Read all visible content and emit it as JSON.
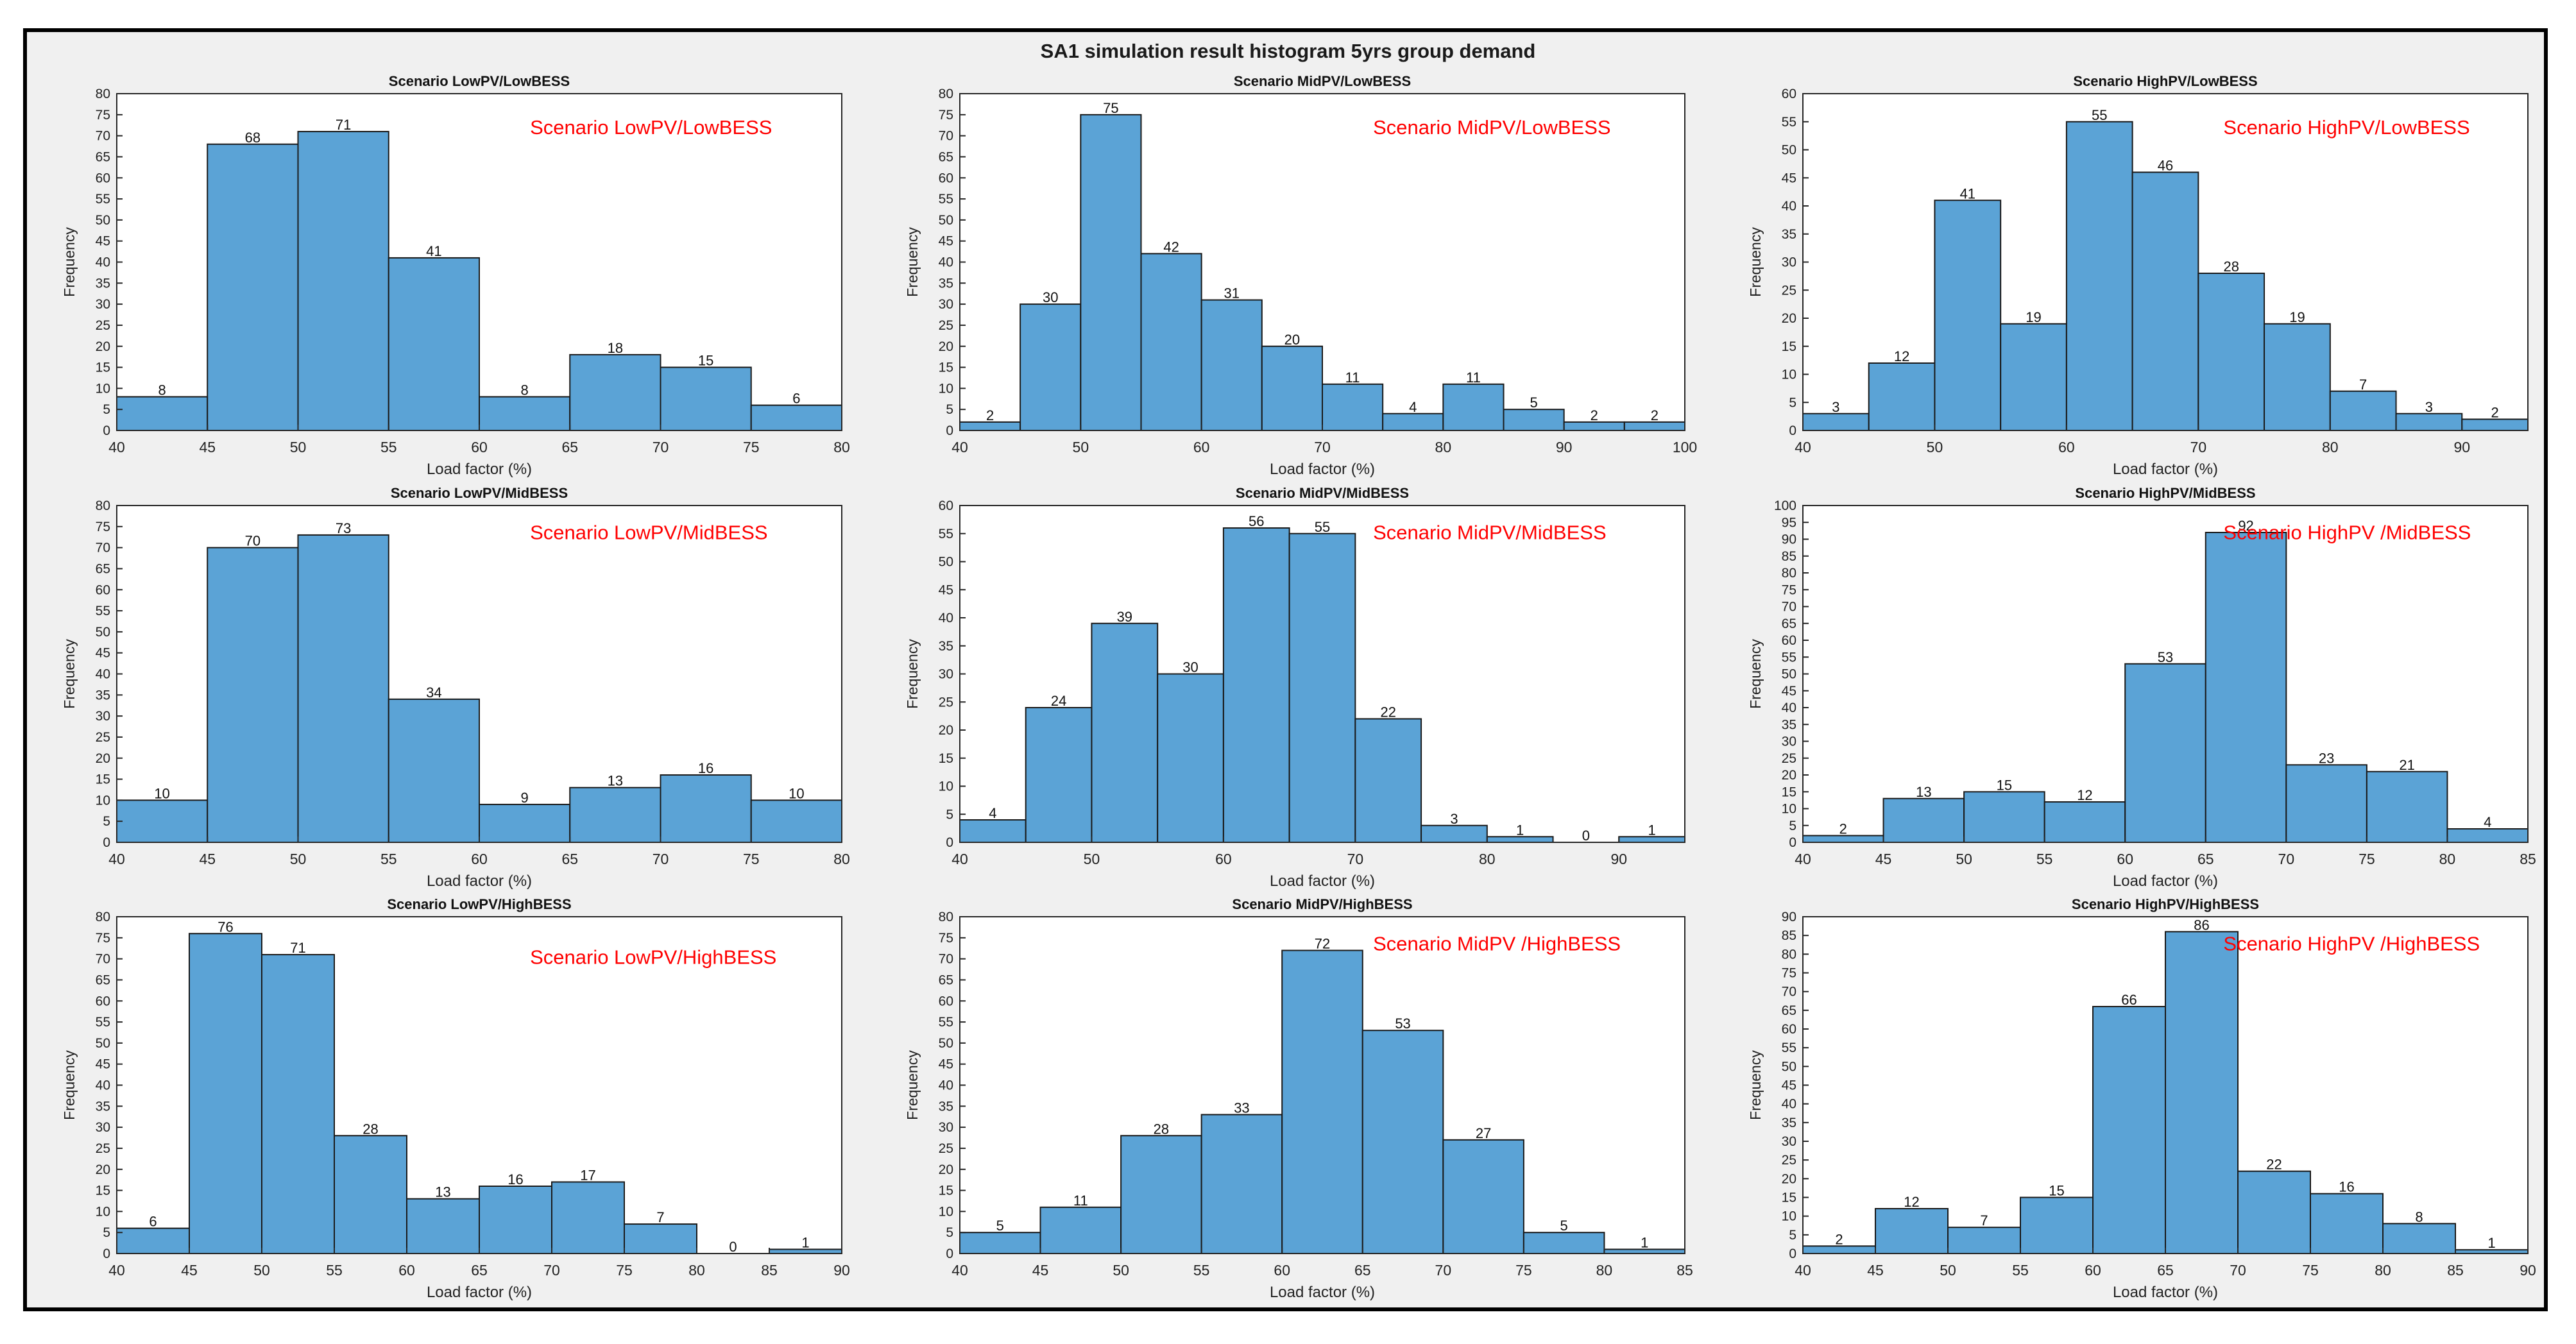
{
  "figure": {
    "title": "SA1 simulation result histogram 5yrs group demand",
    "bar_color": "#5ba3d6",
    "bar_edge_color": "#1a1a1a",
    "overlay_color": "#ff0000"
  },
  "chart_data": [
    {
      "type": "bar",
      "title": "Scenario LowPV/LowBESS",
      "overlay_label": "Scenario LowPV/LowBESS",
      "xlabel": "Load factor (%)",
      "ylabel": "Frequency",
      "xlim": [
        40,
        80
      ],
      "ylim": [
        0,
        80
      ],
      "ytick_step": 5,
      "xticks": [
        40,
        45,
        50,
        55,
        60,
        65,
        70,
        75,
        80
      ],
      "bin_width": 5,
      "bins": [
        40,
        45,
        50,
        55,
        60,
        65,
        70,
        75
      ],
      "values": [
        8,
        68,
        71,
        41,
        8,
        18,
        15,
        6
      ]
    },
    {
      "type": "bar",
      "title": "Scenario MidPV/LowBESS",
      "overlay_label": "Scenario MidPV/LowBESS",
      "xlabel": "Load factor (%)",
      "ylabel": "Frequency",
      "xlim": [
        40,
        100
      ],
      "ylim": [
        0,
        80
      ],
      "ytick_step": 5,
      "xticks": [
        40,
        50,
        60,
        70,
        80,
        90,
        100
      ],
      "bin_width": 5,
      "bins": [
        40,
        45,
        50,
        55,
        60,
        65,
        70,
        75,
        80,
        85,
        90,
        95
      ],
      "values": [
        2,
        30,
        75,
        42,
        31,
        20,
        11,
        4,
        11,
        5,
        2,
        2
      ]
    },
    {
      "type": "bar",
      "title": "Scenario HighPV/LowBESS",
      "overlay_label": "Scenario HighPV/LowBESS",
      "xlabel": "Load factor (%)",
      "ylabel": "Frequency",
      "xlim": [
        40,
        95
      ],
      "ylim": [
        0,
        60
      ],
      "ytick_step": 5,
      "xticks": [
        40,
        50,
        60,
        70,
        80,
        90
      ],
      "bin_width": 5,
      "bins": [
        40,
        45,
        50,
        55,
        60,
        65,
        70,
        75,
        80,
        85,
        90
      ],
      "values": [
        3,
        12,
        41,
        19,
        55,
        46,
        28,
        19,
        7,
        3,
        2
      ]
    },
    {
      "type": "bar",
      "title": "Scenario LowPV/MidBESS",
      "overlay_label": "Scenario LowPV/MidBESS",
      "xlabel": "Load factor (%)",
      "ylabel": "Frequency",
      "xlim": [
        40,
        80
      ],
      "ylim": [
        0,
        80
      ],
      "ytick_step": 5,
      "xticks": [
        40,
        45,
        50,
        55,
        60,
        65,
        70,
        75,
        80
      ],
      "bin_width": 5,
      "bins": [
        40,
        45,
        50,
        55,
        60,
        65,
        70,
        75
      ],
      "values": [
        10,
        70,
        73,
        34,
        9,
        13,
        16,
        10
      ]
    },
    {
      "type": "bar",
      "title": "Scenario MidPV/MidBESS",
      "overlay_label": "Scenario MidPV/MidBESS",
      "xlabel": "Load factor (%)",
      "ylabel": "Frequency",
      "xlim": [
        40,
        95
      ],
      "ylim": [
        0,
        60
      ],
      "ytick_step": 5,
      "xticks": [
        40,
        50,
        60,
        70,
        80,
        90
      ],
      "bin_width": 5,
      "bins": [
        40,
        45,
        50,
        55,
        60,
        65,
        70,
        75,
        80,
        85,
        90
      ],
      "values": [
        4,
        24,
        39,
        30,
        56,
        55,
        22,
        3,
        1,
        0,
        1
      ]
    },
    {
      "type": "bar",
      "title": "Scenario HighPV/MidBESS",
      "overlay_label": "Scenario HighPV /MidBESS",
      "xlabel": "Load factor (%)",
      "ylabel": "Frequency",
      "xlim": [
        40,
        85
      ],
      "ylim": [
        0,
        100
      ],
      "ytick_step": 5,
      "xticks": [
        40,
        45,
        50,
        55,
        60,
        65,
        70,
        75,
        80,
        85
      ],
      "bin_width": 5,
      "bins": [
        40,
        45,
        50,
        55,
        60,
        65,
        70,
        75,
        80
      ],
      "values": [
        2,
        13,
        15,
        12,
        53,
        92,
        23,
        21,
        4
      ]
    },
    {
      "type": "bar",
      "title": "Scenario LowPV/HighBESS",
      "overlay_label": "Scenario LowPV/HighBESS",
      "xlabel": "Load factor (%)",
      "ylabel": "Frequency",
      "xlim": [
        40,
        90
      ],
      "ylim": [
        0,
        80
      ],
      "ytick_step": 5,
      "xticks": [
        40,
        45,
        50,
        55,
        60,
        65,
        70,
        75,
        80,
        85,
        90
      ],
      "bin_width": 5,
      "bins": [
        40,
        45,
        50,
        55,
        60,
        65,
        70,
        75,
        80,
        85
      ],
      "values": [
        6,
        76,
        71,
        28,
        13,
        16,
        17,
        7,
        0,
        1
      ]
    },
    {
      "type": "bar",
      "title": "Scenario MidPV/HighBESS",
      "overlay_label": "Scenario MidPV /HighBESS",
      "xlabel": "Load factor (%)",
      "ylabel": "Frequency",
      "xlim": [
        40,
        85
      ],
      "ylim": [
        0,
        80
      ],
      "ytick_step": 5,
      "xticks": [
        40,
        45,
        50,
        55,
        60,
        65,
        70,
        75,
        80,
        85
      ],
      "bin_width": 5,
      "bins": [
        40,
        45,
        50,
        55,
        60,
        65,
        70,
        75,
        80
      ],
      "values": [
        5,
        11,
        28,
        33,
        72,
        53,
        27,
        5,
        1
      ]
    },
    {
      "type": "bar",
      "title": "Scenario HighPV/HighBESS",
      "overlay_label": "Scenario HighPV /HighBESS",
      "xlabel": "Load factor (%)",
      "ylabel": "Frequency",
      "xlim": [
        40,
        90
      ],
      "ylim": [
        0,
        90
      ],
      "ytick_step": 5,
      "xticks": [
        40,
        45,
        50,
        55,
        60,
        65,
        70,
        75,
        80,
        85,
        90
      ],
      "bin_width": 5,
      "bins": [
        40,
        45,
        50,
        55,
        60,
        65,
        70,
        75,
        80,
        85
      ],
      "values": [
        2,
        12,
        7,
        15,
        66,
        86,
        22,
        16,
        8,
        1
      ]
    }
  ]
}
